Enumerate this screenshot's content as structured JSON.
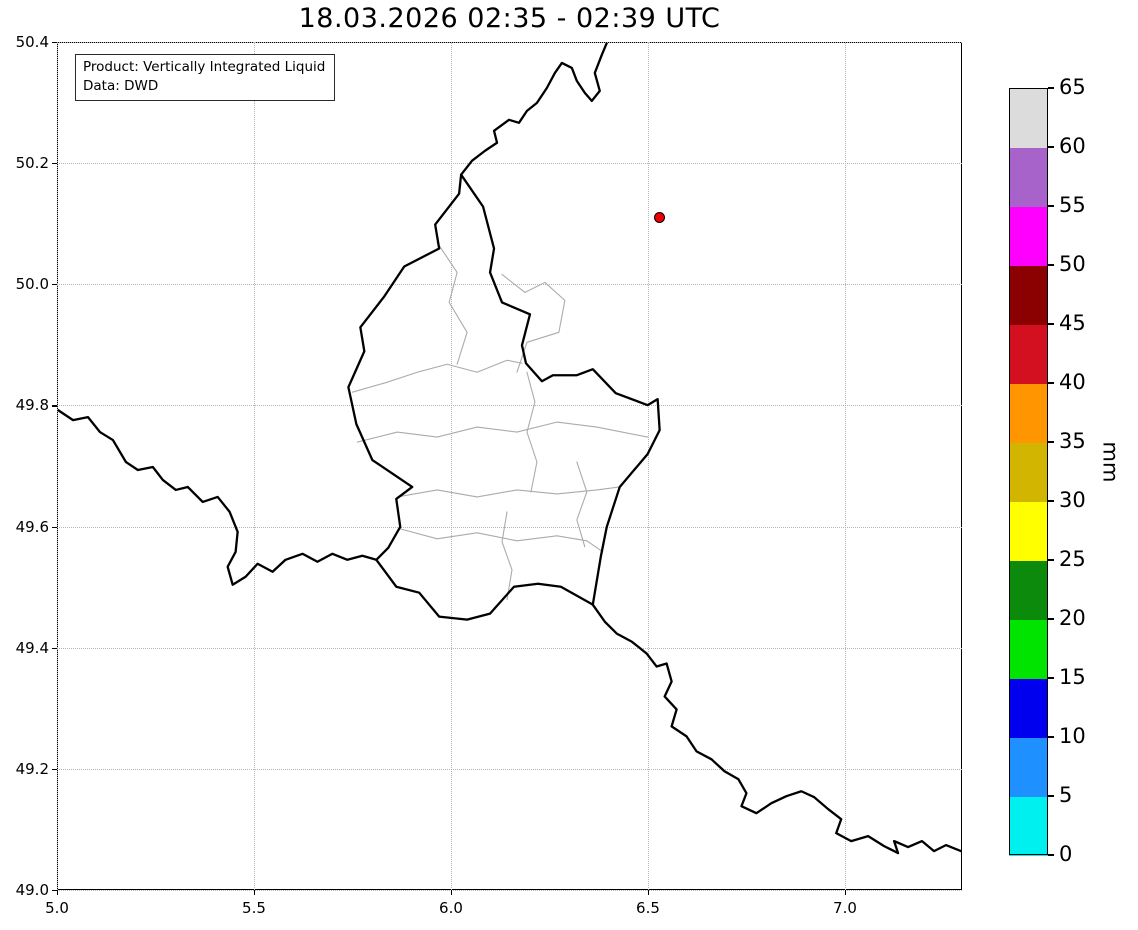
{
  "title": "18.03.2026 02:35 - 02:39 UTC",
  "annotation_box": {
    "line1": "Product: Vertically Integrated Liquid",
    "line2": "Data: DWD"
  },
  "axes": {
    "xlim": [
      5.0,
      7.297
    ],
    "ylim": [
      49.0,
      50.4
    ],
    "x_ticks": [
      {
        "value": 5.0,
        "label": "5.0"
      },
      {
        "value": 5.5,
        "label": "5.5"
      },
      {
        "value": 6.0,
        "label": "6.0"
      },
      {
        "value": 6.5,
        "label": "6.5"
      },
      {
        "value": 7.0,
        "label": "7.0"
      }
    ],
    "y_ticks": [
      {
        "value": 50.4,
        "label": "50.4"
      },
      {
        "value": 50.2,
        "label": "50.2"
      },
      {
        "value": 50.0,
        "label": "50.0"
      },
      {
        "value": 49.8,
        "label": "49.8"
      },
      {
        "value": 49.6,
        "label": "49.6"
      },
      {
        "value": 49.4,
        "label": "49.4"
      },
      {
        "value": 49.2,
        "label": "49.2"
      },
      {
        "value": 49.0,
        "label": "49.0"
      }
    ]
  },
  "marker": {
    "lon": 6.53,
    "lat": 50.11,
    "fill": "#ee0000",
    "edge": "#000000"
  },
  "colorbar": {
    "unit_label": "mm",
    "tick_labels": [
      "0",
      "5",
      "10",
      "15",
      "20",
      "25",
      "30",
      "35",
      "40",
      "45",
      "50",
      "55",
      "60",
      "65"
    ],
    "segment_colors_bottom_to_top": [
      "#00efef",
      "#1e90ff",
      "#0000ee",
      "#00e400",
      "#0b8a0b",
      "#ffff00",
      "#d1b500",
      "#ff9500",
      "#d21020",
      "#8b0000",
      "#ff00ff",
      "#a763c9",
      "#dcdcdc"
    ]
  },
  "chart_data": {
    "type": "map",
    "title": "18.03.2026 02:35 - 02:39 UTC",
    "product": "Vertically Integrated Liquid",
    "data_source": "DWD",
    "projection": "lon/lat degrees",
    "xlim": [
      5.0,
      7.3
    ],
    "ylim": [
      49.0,
      50.4
    ],
    "x_tick_values": [
      5.0,
      5.5,
      6.0,
      6.5,
      7.0
    ],
    "y_tick_values": [
      50.4,
      50.2,
      50.0,
      49.8,
      49.6,
      49.4,
      49.2,
      49.0
    ],
    "grid": true,
    "grid_style": "dotted",
    "colorbar": {
      "label": "mm",
      "min": 0,
      "max": 65,
      "step": 5,
      "boundaries": [
        0,
        5,
        10,
        15,
        20,
        25,
        30,
        35,
        40,
        45,
        50,
        55,
        60,
        65
      ],
      "colors_low_to_high": [
        "cyan",
        "azure-blue",
        "blue",
        "bright-green",
        "dark-green",
        "yellow",
        "dark-yellow",
        "orange",
        "red",
        "dark-red",
        "magenta",
        "purple",
        "light-gray"
      ]
    },
    "precipitation_cells": [],
    "markers": [
      {
        "lon": 6.53,
        "lat": 50.11,
        "shape": "circle",
        "color": "red"
      }
    ],
    "map_features": [
      "Luxembourg national border",
      "Luxembourg internal district borders",
      "Belgium-Germany border",
      "France-Belgium border",
      "France-Germany border"
    ]
  }
}
